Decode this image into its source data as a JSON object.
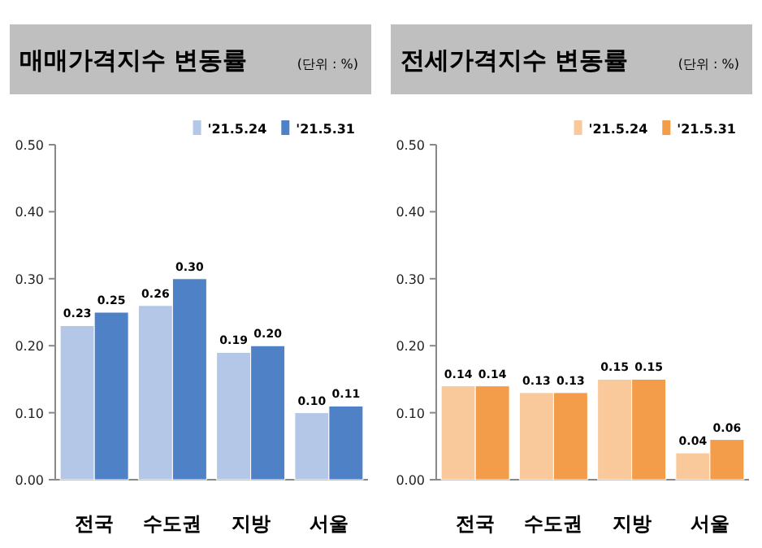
{
  "chart_data": [
    {
      "type": "bar",
      "title": "매매가격지수 변동률",
      "subtitle": "(단위 : %)",
      "categories": [
        "전국",
        "수도권",
        "지방",
        "서울"
      ],
      "ylim": [
        0,
        0.5
      ],
      "yticks": [
        {
          "value": 0,
          "label": "0.00"
        },
        {
          "value": 0.1,
          "label": "0.10"
        },
        {
          "value": 0.2,
          "label": "0.20"
        },
        {
          "value": 0.3,
          "label": "0.30"
        },
        {
          "value": 0.4,
          "label": "0.40"
        },
        {
          "value": 0.5,
          "label": "0.50"
        }
      ],
      "legend": "top right",
      "series": [
        {
          "name": "'21.5.24",
          "color": "#b4c7e7",
          "values": [
            0.23,
            0.26,
            0.19,
            0.1
          ],
          "value_labels": [
            "0.23",
            "0.26",
            "0.19",
            "0.10"
          ]
        },
        {
          "name": "'21.5.31",
          "color": "#4f81c7",
          "values": [
            0.25,
            0.3,
            0.2,
            0.11
          ],
          "value_labels": [
            "0.25",
            "0.30",
            "0.20",
            "0.11"
          ]
        }
      ]
    },
    {
      "type": "bar",
      "title": "전세가격지수 변동률",
      "subtitle": "(단위 : %)",
      "categories": [
        "전국",
        "수도권",
        "지방",
        "서울"
      ],
      "ylim": [
        0,
        0.5
      ],
      "yticks": [
        {
          "value": 0,
          "label": "0.00"
        },
        {
          "value": 0.1,
          "label": "0.10"
        },
        {
          "value": 0.2,
          "label": "0.20"
        },
        {
          "value": 0.3,
          "label": "0.30"
        },
        {
          "value": 0.4,
          "label": "0.40"
        },
        {
          "value": 0.5,
          "label": "0.50"
        }
      ],
      "legend": "top right",
      "series": [
        {
          "name": "'21.5.24",
          "color": "#f9c89b",
          "values": [
            0.14,
            0.13,
            0.15,
            0.04
          ],
          "value_labels": [
            "0.14",
            "0.13",
            "0.15",
            "0.04"
          ]
        },
        {
          "name": "'21.5.31",
          "color": "#f39c4a",
          "values": [
            0.14,
            0.13,
            0.15,
            0.06
          ],
          "value_labels": [
            "0.14",
            "0.13",
            "0.15",
            "0.06"
          ]
        }
      ]
    }
  ]
}
